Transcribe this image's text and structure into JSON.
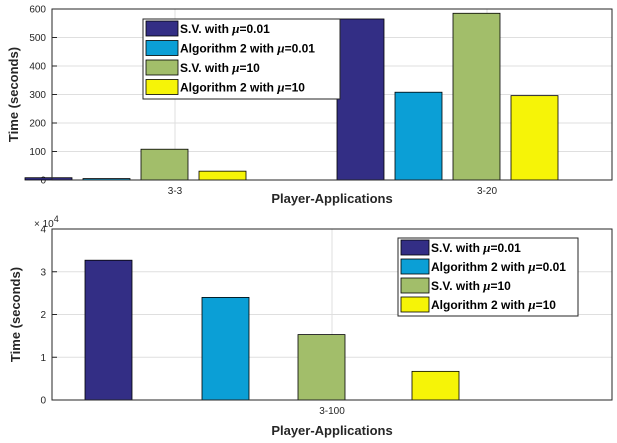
{
  "colors": {
    "sv_001": "#332e85",
    "alg2_001": "#0b9fd6",
    "sv_10": "#a2be6a",
    "alg2_10": "#f6f407"
  },
  "chart_data": [
    {
      "type": "bar",
      "categories": [
        "3-3",
        "3-20"
      ],
      "xlabel": "Player-Applications",
      "ylabel": "Time (seconds)",
      "ylim": [
        0,
        600
      ],
      "yticks": [
        0,
        100,
        200,
        300,
        400,
        500,
        600
      ],
      "grid": true,
      "legend_placement": "top-center",
      "series": [
        {
          "name_prefix": "S.V. with ",
          "mu_value": "=0.01",
          "color_key": "sv_001",
          "values": [
            8,
            565
          ]
        },
        {
          "name_prefix": "Algorithm 2 with ",
          "mu_value": "=0.01",
          "color_key": "alg2_001",
          "values": [
            5,
            308
          ]
        },
        {
          "name_prefix": "S.V. with ",
          "mu_value": "=10",
          "color_key": "sv_10",
          "values": [
            108,
            585
          ]
        },
        {
          "name_prefix": "Algorithm 2 with ",
          "mu_value": "=10",
          "color_key": "alg2_10",
          "values": [
            31,
            296
          ]
        }
      ]
    },
    {
      "type": "bar",
      "categories": [
        "3-100"
      ],
      "xlabel": "Player-Applications",
      "ylabel": "Time (seconds)",
      "ylim": [
        0,
        4
      ],
      "yticks": [
        0,
        1,
        2,
        3,
        4
      ],
      "y_multiplier_base": "× 10",
      "y_multiplier_exp": "4",
      "grid": true,
      "legend_placement": "top-right",
      "series": [
        {
          "name_prefix": "S.V. with ",
          "mu_value": "=0.01",
          "color_key": "sv_001",
          "values": [
            3.27
          ]
        },
        {
          "name_prefix": "Algorithm 2 with ",
          "mu_value": "=0.01",
          "color_key": "alg2_001",
          "values": [
            2.4
          ]
        },
        {
          "name_prefix": "S.V. with ",
          "mu_value": "=10",
          "color_key": "sv_10",
          "values": [
            1.53
          ]
        },
        {
          "name_prefix": "Algorithm 2 with ",
          "mu_value": "=10",
          "color_key": "alg2_10",
          "values": [
            0.67
          ]
        }
      ]
    }
  ],
  "mu_symbol": "μ"
}
